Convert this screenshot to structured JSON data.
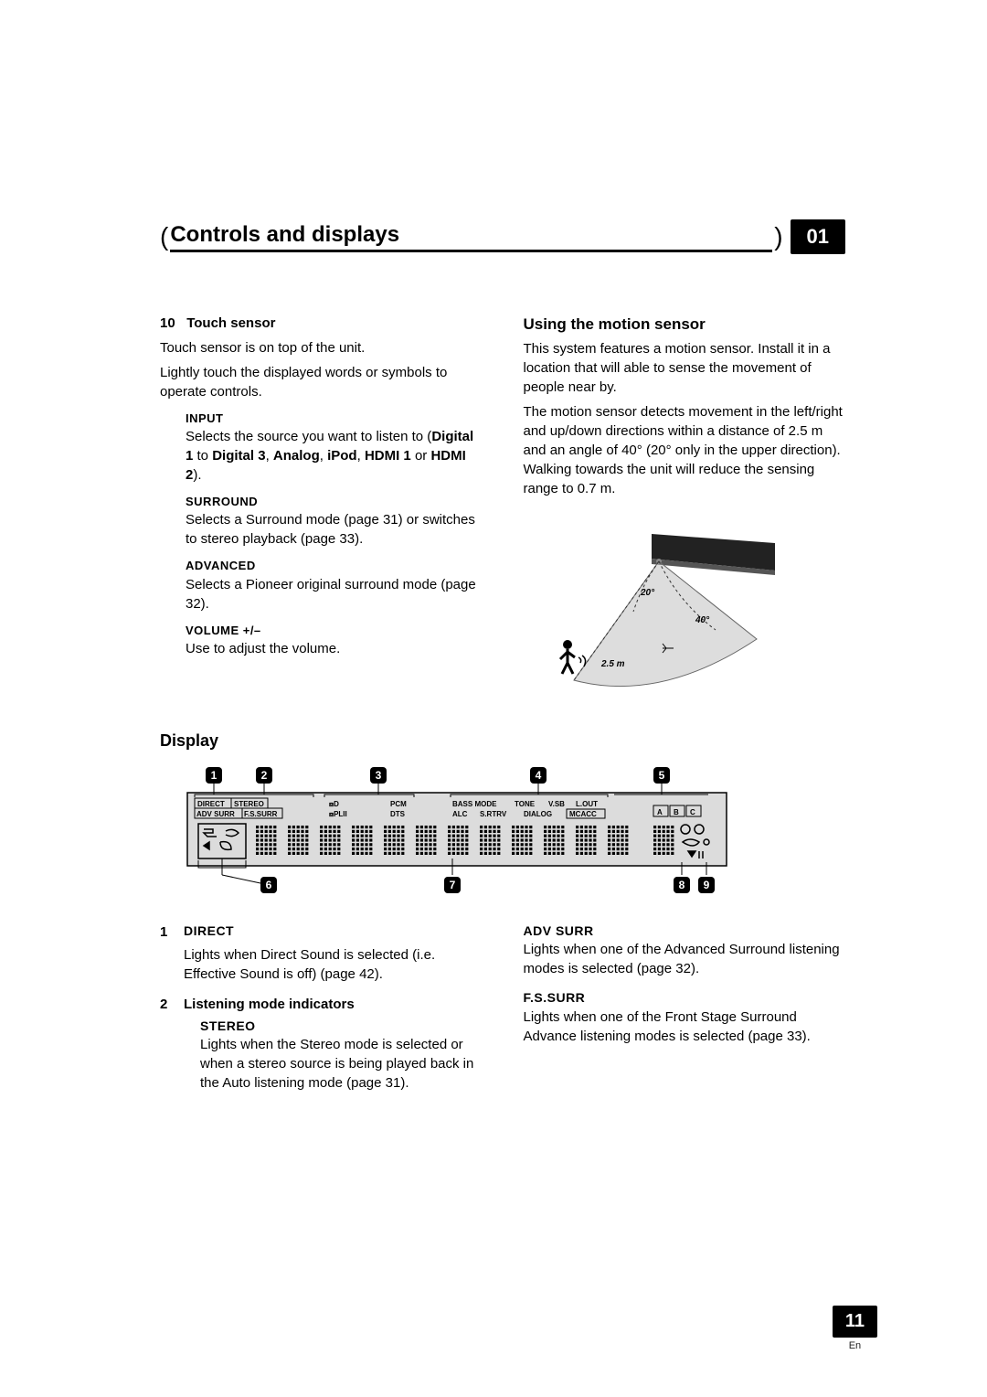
{
  "header": {
    "title": "Controls and displays",
    "chapter_number": "01"
  },
  "left_col": {
    "touch_sensor": {
      "num": "10",
      "label": "Touch sensor",
      "line1": "Touch sensor is on top of the unit.",
      "line2": "Lightly touch the displayed words or symbols to operate controls."
    },
    "input": {
      "label": "INPUT",
      "body_pre": "Selects the source you want to listen to (",
      "b1": "Digital 1",
      "to": " to ",
      "b2": "Digital 3",
      "c1": ", ",
      "b3": "Analog",
      "c2": ", ",
      "b4": "iPod",
      "c3": ", ",
      "b5": "HDMI 1",
      "or": " or ",
      "b6": "HDMI 2",
      "close": ")."
    },
    "surround": {
      "label": "SURROUND",
      "body": "Selects a Surround mode (page 31) or switches to stereo playback (page 33)."
    },
    "advanced": {
      "label": "ADVANCED",
      "body": "Selects a Pioneer original surround mode (page 32)."
    },
    "volume": {
      "label": "VOLUME +/–",
      "body": "Use to adjust the volume."
    }
  },
  "right_col": {
    "motion_sensor": {
      "heading": "Using the motion sensor",
      "p1": "This system features a motion sensor. Install it in a location that will able to sense the movement of people near by.",
      "p2": "The motion sensor detects movement in the left/right and up/down directions within a distance of 2.5 m and an angle of 40° (20° only in the upper direction). Walking towards the unit will reduce the sensing range to 0.7 m."
    },
    "diagram": {
      "labels": {
        "angle_upper": "20°",
        "angle_lower": "40°",
        "distance": "2.5 m"
      },
      "colors": {
        "unit": "#222222",
        "cone": "#888888",
        "dash": "#444444"
      }
    }
  },
  "display_section": {
    "heading": "Display",
    "diagram": {
      "callouts": [
        "1",
        "2",
        "3",
        "4",
        "5",
        "6",
        "7",
        "8",
        "9"
      ],
      "top_row_left": [
        "DIRECT",
        "STEREO"
      ],
      "top_row_left2": [
        "ADV SURR",
        "F.S.SURR"
      ],
      "top_mid": [
        "PCM",
        "DTS"
      ],
      "top_mid_icons": [
        "⧈D",
        "⧈PLII"
      ],
      "top_right_row1": [
        "BASS MODE",
        "TONE",
        "V.SB",
        "L.OUT"
      ],
      "top_right_row2": [
        "ALC",
        "S.RTRV",
        "DIALOG",
        "MCACC"
      ],
      "letters": [
        "A",
        "B",
        "C"
      ],
      "colors": {
        "panel": "#dcdcdc",
        "outline": "#000000",
        "badge_bg": "#000000",
        "badge_fg": "#ffffff"
      }
    },
    "definitions": {
      "d1": {
        "num": "1",
        "label": "DIRECT",
        "body": "Lights when Direct Sound is selected (i.e. Effective Sound is off) (page 42)."
      },
      "d2": {
        "num": "2",
        "label": "Listening mode indicators"
      },
      "stereo": {
        "label": "STEREO",
        "body": "Lights when the Stereo mode is selected or when a stereo source is being played back in the Auto listening mode (page 31)."
      },
      "advsurr": {
        "label": "ADV SURR",
        "body": "Lights when one of the Advanced Surround listening modes is selected (page 32)."
      },
      "fssurr": {
        "label": "F.S.SURR",
        "body": "Lights when one of the Front Stage Surround Advance listening modes is selected (page 33)."
      }
    }
  },
  "footer": {
    "page_number": "11",
    "lang": "En"
  }
}
